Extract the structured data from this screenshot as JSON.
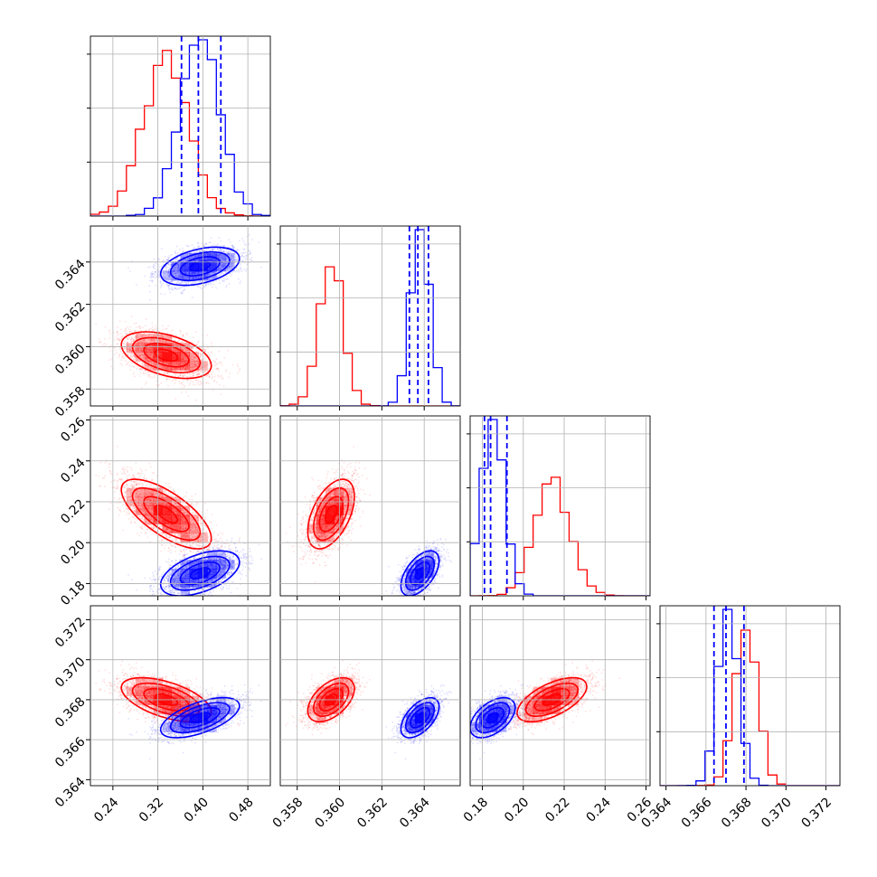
{
  "colors": {
    "red": "#ff0000",
    "blue": "#0000ff",
    "grid": "#b0b0b0",
    "frame": "#000000"
  },
  "chart_data": {
    "type": "corner",
    "grid": true,
    "parameters": [
      {
        "range": [
          0.2,
          0.52
        ],
        "ticks": [
          0.24,
          0.32,
          0.4,
          0.48
        ],
        "tick_labels": [
          "0.24",
          "0.32",
          "0.40",
          "0.48"
        ]
      },
      {
        "range": [
          0.3572,
          0.3657
        ],
        "ticks": [
          0.358,
          0.36,
          0.362,
          0.364
        ],
        "tick_labels": [
          "0.358",
          "0.360",
          "0.362",
          "0.364"
        ]
      },
      {
        "range": [
          0.174,
          0.262
        ],
        "ticks": [
          0.18,
          0.2,
          0.22,
          0.24,
          0.26
        ],
        "tick_labels": [
          "0.18",
          "0.20",
          "0.22",
          "0.24",
          "0.26"
        ]
      },
      {
        "range": [
          0.3637,
          0.3727
        ],
        "ticks": [
          0.364,
          0.366,
          0.368,
          0.37,
          0.372
        ],
        "tick_labels": [
          "0.364",
          "0.366",
          "0.368",
          "0.370",
          "0.372"
        ]
      }
    ],
    "series": [
      {
        "color": "red",
        "mean": [
          0.335,
          0.3596,
          0.214,
          0.368
        ],
        "std": [
          0.04,
          0.00055,
          0.0085,
          0.00055
        ],
        "corr": {
          "0-1": -0.45,
          "0-2": -0.7,
          "0-3": -0.55,
          "1-2": 0.5,
          "1-3": 0.5,
          "2-3": 0.6
        }
      },
      {
        "color": "blue",
        "mean": [
          0.395,
          0.3638,
          0.185,
          0.3671
        ],
        "std": [
          0.035,
          0.00045,
          0.0055,
          0.0005
        ],
        "corr": {
          "0-1": 0.4,
          "0-2": 0.5,
          "0-3": 0.6,
          "1-2": 0.55,
          "1-3": 0.55,
          "2-3": 0.5
        }
      }
    ],
    "quantile_lines": {
      "color": "blue",
      "values": [
        [
          0.362,
          0.392,
          0.432
        ],
        [
          0.3633,
          0.3637,
          0.3642
        ],
        [
          0.181,
          0.184,
          0.192
        ],
        [
          0.3664,
          0.367,
          0.3679
        ]
      ]
    }
  }
}
